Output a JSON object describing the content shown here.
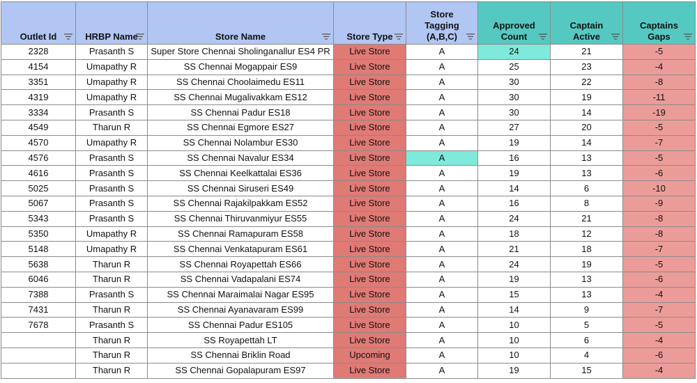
{
  "table": {
    "columns": [
      "Outlet Id",
      "HRBP Name",
      "Store Name",
      "Store Type",
      "Store Tagging (A,B,C)",
      "Approved Count",
      "Captain Active",
      "Captains Gaps"
    ],
    "rows": [
      [
        "2328",
        "Prasanth S",
        "Super Store Chennai Sholinganallur ES4 PR",
        "Live Store",
        "A",
        "24",
        "21",
        "-5"
      ],
      [
        "4154",
        "Umapathy R",
        "SS Chennai Mogappair ES9",
        "Live Store",
        "A",
        "25",
        "23",
        "-4"
      ],
      [
        "3351",
        "Umapathy R",
        "SS Chennai Choolaimedu ES11",
        "Live Store",
        "A",
        "30",
        "22",
        "-8"
      ],
      [
        "4319",
        "Umapathy R",
        "SS Chennai Mugalivakkam ES12",
        "Live Store",
        "A",
        "30",
        "19",
        "-11"
      ],
      [
        "3334",
        "Prasanth S",
        "SS Chennai Padur ES18",
        "Live Store",
        "A",
        "30",
        "14",
        "-19"
      ],
      [
        "4549",
        "Tharun R",
        "SS Chennai Egmore ES27",
        "Live Store",
        "A",
        "27",
        "20",
        "-5"
      ],
      [
        "4570",
        "Umapathy R",
        "SS Chennai Nolambur ES30",
        "Live Store",
        "A",
        "19",
        "14",
        "-7"
      ],
      [
        "4576",
        "Prasanth S",
        "SS Chennai Navalur ES34",
        "Live Store",
        "A",
        "16",
        "13",
        "-5"
      ],
      [
        "4616",
        "Prasanth S",
        "SS Chennai Keelkattalai ES36",
        "Live Store",
        "A",
        "19",
        "13",
        "-6"
      ],
      [
        "5025",
        "Prasanth S",
        "SS Chennai Siruseri ES49",
        "Live Store",
        "A",
        "14",
        "6",
        "-10"
      ],
      [
        "5067",
        "Prasanth S",
        "SS Chennai Rajakilpakkam ES52",
        "Live Store",
        "A",
        "16",
        "8",
        "-9"
      ],
      [
        "5343",
        "Prasanth S",
        "SS Chennai Thiruvanmiyur ES55",
        "Live Store",
        "A",
        "24",
        "21",
        "-8"
      ],
      [
        "5350",
        "Umapathy R",
        "SS Chennai Ramapuram ES58",
        "Live Store",
        "A",
        "18",
        "12",
        "-8"
      ],
      [
        "5148",
        "Umapathy R",
        "SS Chennai Venkatapuram ES61",
        "Live Store",
        "A",
        "21",
        "18",
        "-7"
      ],
      [
        "5638",
        "Tharun R",
        "SS Chennai Royapettah ES66",
        "Live Store",
        "A",
        "24",
        "19",
        "-5"
      ],
      [
        "6046",
        "Tharun R",
        "SS Chennai Vadapalani ES74",
        "Live Store",
        "A",
        "19",
        "13",
        "-6"
      ],
      [
        "7388",
        "Prasanth S",
        "SS Chennai Maraimalai Nagar ES95",
        "Live Store",
        "A",
        "15",
        "13",
        "-4"
      ],
      [
        "7431",
        "Tharun R",
        "SS Chennai Ayanavaram ES99",
        "Live Store",
        "A",
        "14",
        "9",
        "-7"
      ],
      [
        "7678",
        "Prasanth S",
        "SS Chennai Padur ES105",
        "Live Store",
        "A",
        "10",
        "5",
        "-5"
      ],
      [
        null,
        "Tharun R",
        "SS Royapettah LT",
        "Live Store",
        "A",
        "10",
        "6",
        "-4"
      ],
      [
        null,
        "Tharun R",
        "SS Chennai Briklin Road",
        "Upcoming",
        "A",
        "10",
        "4",
        "-6"
      ],
      [
        null,
        "Tharun R",
        "SS Chennai Gopalapuram ES97",
        "Live Store",
        "A",
        "19",
        "15",
        "-4"
      ]
    ]
  }
}
